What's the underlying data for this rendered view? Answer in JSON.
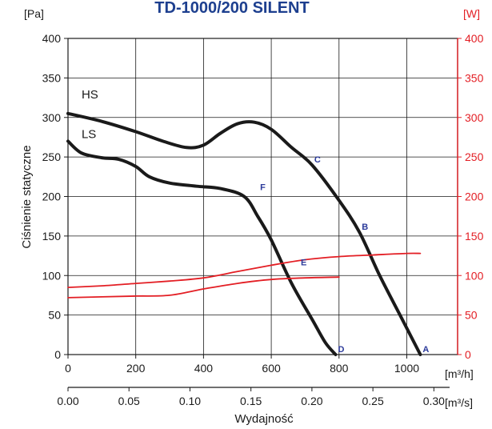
{
  "chart_data": {
    "type": "line",
    "title": "TD-1000/200 SILENT",
    "ylabel": "Ciśnienie statyczne",
    "xlabel": "Wydajność",
    "y_unit": "[Pa]",
    "y2_unit": "[W]",
    "x_unit": "[m³/h]",
    "x2_unit": "[m³/s]",
    "xlim": [
      0,
      1150
    ],
    "ylim": [
      0,
      400
    ],
    "y2lim": [
      0,
      400
    ],
    "x_ticks": [
      "0",
      "200",
      "400",
      "600",
      "800",
      "1000"
    ],
    "x_tick_values": [
      0,
      200,
      400,
      600,
      800,
      1000
    ],
    "x2_ticks": [
      "0.00",
      "0.05",
      "0.10",
      "0.15",
      "0.20",
      "0.25",
      "0.30"
    ],
    "x2_tick_values": [
      0,
      0.05,
      0.1,
      0.15,
      0.2,
      0.25,
      0.3
    ],
    "y_ticks": [
      "0",
      "50",
      "100",
      "150",
      "200",
      "250",
      "300",
      "350",
      "400"
    ],
    "y_tick_values": [
      0,
      50,
      100,
      150,
      200,
      250,
      300,
      350,
      400
    ],
    "y2_ticks": [
      "0",
      "50",
      "100",
      "150",
      "200",
      "250",
      "300",
      "350",
      "400"
    ],
    "grid": true,
    "colors": {
      "pressure": "#1a1a1a",
      "power": "#e31e24",
      "points": "#2b3a9a",
      "title": "#1d3f8f",
      "grid": "#1a1a1a"
    },
    "series": [
      {
        "name": "HS",
        "kind": "pressure",
        "label_at": [
          40,
          324
        ],
        "x": [
          0,
          100,
          200,
          280,
          350,
          400,
          450,
          500,
          550,
          600,
          660,
          720,
          800,
          860,
          920,
          980,
          1040
        ],
        "y": [
          305,
          295,
          282,
          270,
          262,
          265,
          280,
          292,
          294,
          285,
          262,
          240,
          195,
          155,
          100,
          50,
          0
        ]
      },
      {
        "name": "LS",
        "kind": "pressure",
        "label_at": [
          40,
          274
        ],
        "x": [
          0,
          40,
          100,
          150,
          200,
          240,
          300,
          380,
          450,
          520,
          560,
          600,
          660,
          720,
          760,
          790
        ],
        "y": [
          270,
          255,
          249,
          247,
          238,
          225,
          217,
          213,
          210,
          200,
          175,
          145,
          90,
          45,
          15,
          0
        ]
      },
      {
        "name": "",
        "kind": "power",
        "x": [
          0,
          100,
          200,
          300,
          400,
          500,
          600,
          700,
          800,
          900,
          1000,
          1040
        ],
        "y": [
          85,
          87,
          90,
          93,
          97,
          105,
          113,
          120,
          124,
          126,
          128,
          128
        ]
      },
      {
        "name": "",
        "kind": "power",
        "x": [
          0,
          100,
          200,
          300,
          400,
          500,
          600,
          700,
          800
        ],
        "y": [
          72,
          73,
          74,
          75,
          83,
          90,
          95,
          97,
          98
        ]
      }
    ],
    "points": [
      {
        "label": "A",
        "x": 1040,
        "y": 0
      },
      {
        "label": "B",
        "x": 860,
        "y": 155
      },
      {
        "label": "C",
        "x": 720,
        "y": 240
      },
      {
        "label": "D",
        "x": 790,
        "y": 0
      },
      {
        "label": "E",
        "x": 680,
        "y": 110
      },
      {
        "label": "F",
        "x": 560,
        "y": 205
      }
    ]
  }
}
